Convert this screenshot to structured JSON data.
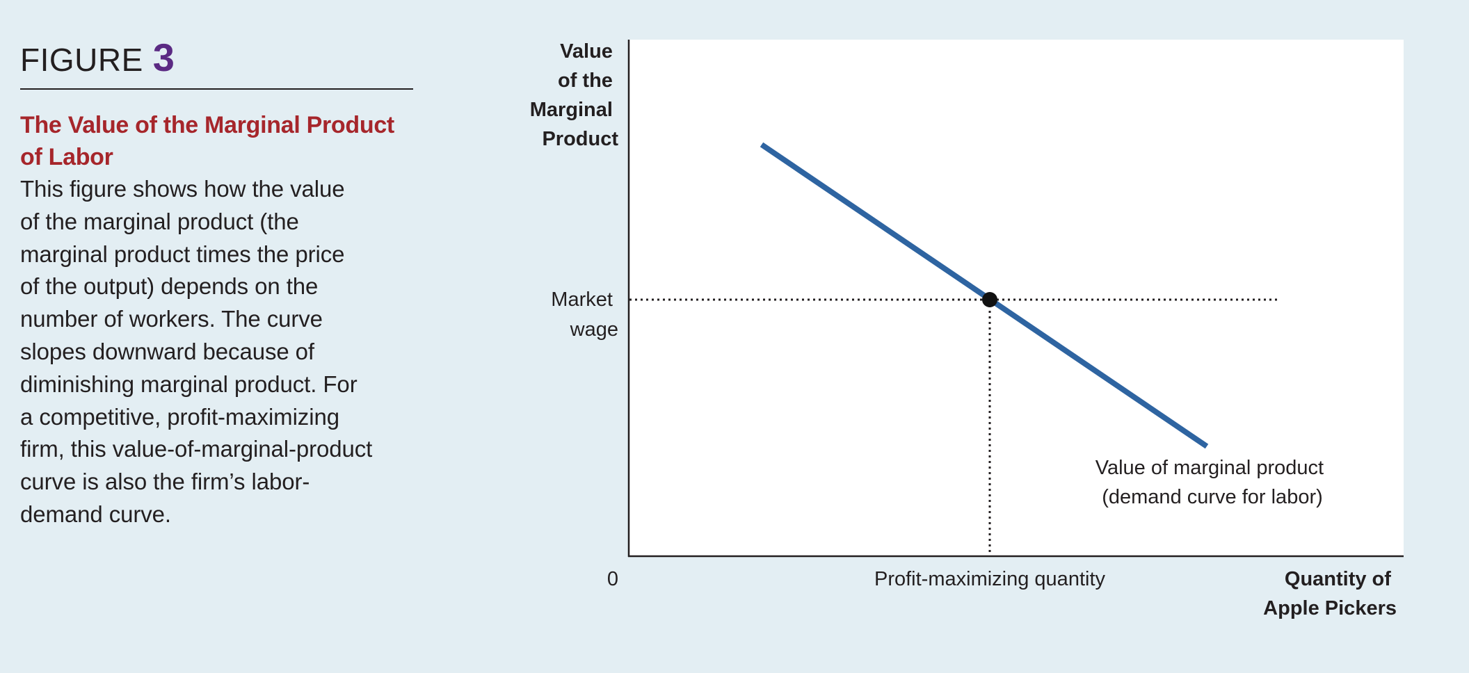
{
  "figure": {
    "label": "FIGURE",
    "number": "3",
    "title_lines": [
      "The Value of the Marginal Product",
      "of Labor"
    ],
    "body_lines": [
      "This figure shows how the value",
      "of the marginal product (the",
      "marginal product times the price",
      "of the output) depends on the",
      "number of workers. The curve",
      "slopes downward because of",
      "diminishing marginal product. For",
      "a competitive, profit-maximizing",
      "firm, this value-of-marginal-product",
      "curve is also the firm’s labor-",
      "demand curve."
    ]
  },
  "diagram": {
    "y_axis_label_lines": [
      "Value",
      "of the",
      "Marginal",
      "Product"
    ],
    "x_axis_label_lines": [
      "Quantity of",
      "Apple Pickers"
    ],
    "origin_label": "0",
    "wage_label_lines": [
      "Market",
      "wage"
    ],
    "quantity_label": "Profit-maximizing quantity",
    "curve_label_lines": [
      "Value of marginal product",
      "(demand curve for labor)"
    ]
  },
  "colors": {
    "background": "#e3eef3",
    "plot_area": "#ffffff",
    "curve": "#2e64a1",
    "title": "#a6262b",
    "figure_number": "#5b2a83",
    "text": "#231f20"
  }
}
